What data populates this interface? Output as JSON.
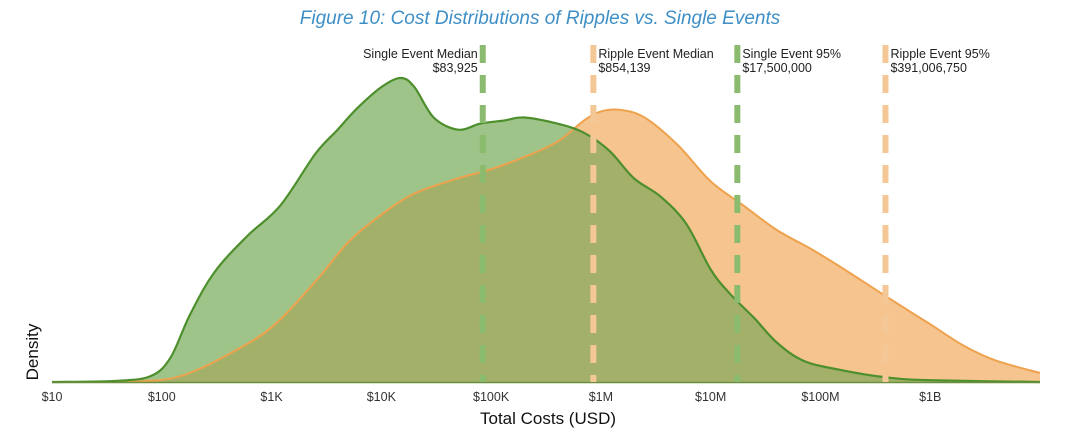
{
  "chart_data": {
    "type": "area",
    "title": "Figure 10: Cost Distributions of Ripples vs. Single Events",
    "xlabel": "Total Costs (USD)",
    "ylabel": "Density",
    "x_scale": "log",
    "x_range": [
      10,
      10000000000
    ],
    "y_range": [
      0,
      1
    ],
    "x_ticks": [
      {
        "value": 10,
        "label": "$10"
      },
      {
        "value": 100,
        "label": "$100"
      },
      {
        "value": 1000,
        "label": "$1K"
      },
      {
        "value": 10000,
        "label": "$10K"
      },
      {
        "value": 100000,
        "label": "$100K"
      },
      {
        "value": 1000000,
        "label": "$1M"
      },
      {
        "value": 10000000,
        "label": "$10M"
      },
      {
        "value": 100000000,
        "label": "$100M"
      },
      {
        "value": 1000000000,
        "label": "$1B"
      }
    ],
    "grid": false,
    "colors": {
      "single_fill": "#9fc48a",
      "single_line": "#4d8f2c",
      "ripple_fill": "#f6c48f",
      "ripple_line": "#eea24d",
      "overlap_fill": "#a2b06a",
      "single_marker": "#8bbb6e",
      "ripple_marker": "#f4c896",
      "title": "#3f8fc7"
    },
    "series": [
      {
        "points": [
          [
            10,
            0.0
          ],
          [
            40,
            0.004
          ],
          [
            80,
            0.02
          ],
          [
            120,
            0.08
          ],
          [
            180,
            0.22
          ],
          [
            300,
            0.36
          ],
          [
            600,
            0.48
          ],
          [
            1200,
            0.58
          ],
          [
            2500,
            0.75
          ],
          [
            4000,
            0.83
          ],
          [
            6000,
            0.9
          ],
          [
            10000,
            0.97
          ],
          [
            15000,
            1.0
          ],
          [
            20000,
            0.97
          ],
          [
            30000,
            0.87
          ],
          [
            50000,
            0.83
          ],
          [
            80000,
            0.85
          ],
          [
            130000,
            0.86
          ],
          [
            200000,
            0.87
          ],
          [
            400000,
            0.85
          ],
          [
            700000,
            0.82
          ],
          [
            1200000,
            0.76
          ],
          [
            2000000,
            0.67
          ],
          [
            3500000,
            0.61
          ],
          [
            6000000,
            0.52
          ],
          [
            10000000,
            0.37
          ],
          [
            15000000,
            0.29
          ],
          [
            25000000,
            0.21
          ],
          [
            40000000,
            0.13
          ],
          [
            70000000,
            0.07
          ],
          [
            150000000,
            0.04
          ],
          [
            400000000,
            0.015
          ],
          [
            1000000000,
            0.006
          ],
          [
            10000000000,
            0.0
          ]
        ]
      },
      {
        "points": [
          [
            10,
            0.0
          ],
          [
            60,
            0.002
          ],
          [
            150,
            0.02
          ],
          [
            400,
            0.09
          ],
          [
            1000,
            0.18
          ],
          [
            2500,
            0.33
          ],
          [
            5000,
            0.46
          ],
          [
            10000,
            0.55
          ],
          [
            20000,
            0.62
          ],
          [
            50000,
            0.67
          ],
          [
            100000,
            0.7
          ],
          [
            200000,
            0.74
          ],
          [
            400000,
            0.79
          ],
          [
            700000,
            0.86
          ],
          [
            1000000,
            0.89
          ],
          [
            1500000,
            0.895
          ],
          [
            2500000,
            0.87
          ],
          [
            5000000,
            0.78
          ],
          [
            10000000,
            0.66
          ],
          [
            20000000,
            0.58
          ],
          [
            40000000,
            0.5
          ],
          [
            80000000,
            0.44
          ],
          [
            150000000,
            0.38
          ],
          [
            300000000,
            0.31
          ],
          [
            600000000,
            0.24
          ],
          [
            1000000000,
            0.19
          ],
          [
            2000000000,
            0.12
          ],
          [
            4000000000,
            0.07
          ],
          [
            10000000000,
            0.03
          ]
        ]
      }
    ],
    "reference_lines": [
      {
        "id": "single-median",
        "value": 83925,
        "label": "Single Event Median",
        "value_label": "$83,925",
        "series": "single",
        "label_side": "left"
      },
      {
        "id": "ripple-median",
        "value": 854139,
        "label": "Ripple Event Median",
        "value_label": "$854,139",
        "series": "ripple",
        "label_side": "right"
      },
      {
        "id": "single-95",
        "value": 17500000,
        "label": "Single Event 95%",
        "value_label": "$17,500,000",
        "series": "single",
        "label_side": "right"
      },
      {
        "id": "ripple-95",
        "value": 391006750,
        "label": "Ripple Event 95%",
        "value_label": "$391,006,750",
        "series": "ripple",
        "label_side": "right"
      }
    ]
  }
}
